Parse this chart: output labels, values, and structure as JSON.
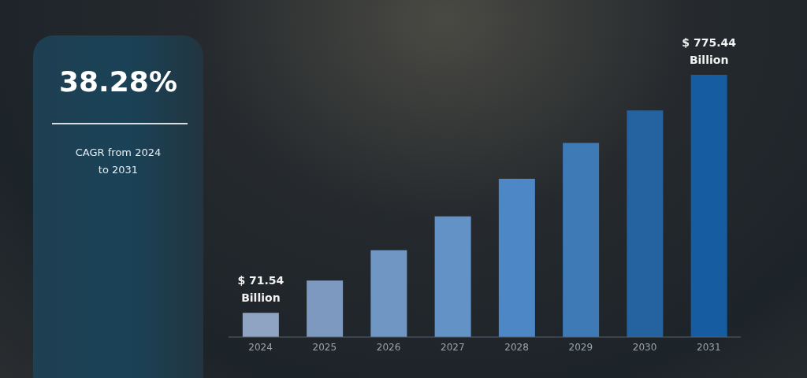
{
  "chart_data": {
    "type": "bar",
    "categories": [
      "2024",
      "2025",
      "2026",
      "2027",
      "2028",
      "2029",
      "2030",
      "2031"
    ],
    "values": [
      71.54,
      167,
      257,
      357,
      468,
      574,
      670,
      775.44
    ],
    "value_labels": [
      "$ 71.54 Billion",
      null,
      null,
      null,
      null,
      null,
      null,
      "$ 775.44 Billion"
    ],
    "colors": [
      "#8fa3c2",
      "#7d99bf",
      "#7097c4",
      "#6393c6",
      "#4d87c6",
      "#3e7ab6",
      "#2463a0",
      "#155ca0"
    ],
    "annotations": [
      "38.28%",
      "CAGR from 2024 to 2031"
    ],
    "tick_labels": "x"
  }
}
